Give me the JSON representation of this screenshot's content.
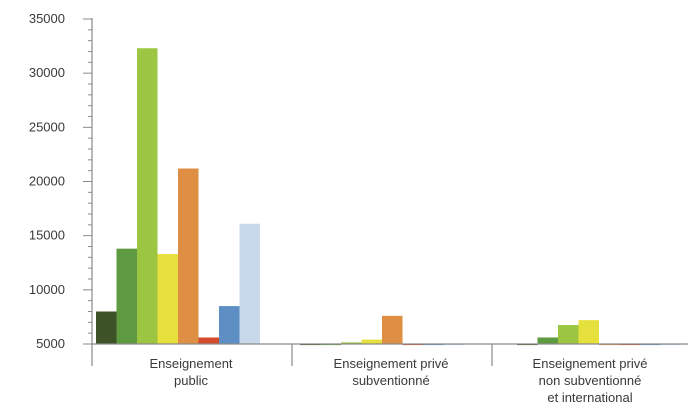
{
  "chart_data": {
    "type": "bar",
    "title": "",
    "xlabel": "",
    "ylabel": "",
    "ylim": [
      5000,
      35000
    ],
    "yticks": [
      "5000",
      "10000",
      "15000",
      "20000",
      "25000",
      "30000",
      "35000"
    ],
    "grid": false,
    "legend": "none",
    "categories": [
      [
        "Enseignement",
        "public"
      ],
      [
        "Enseignement privé",
        "subventionné"
      ],
      [
        "Enseignement privé",
        "non subventionné",
        "et international"
      ]
    ],
    "series": [
      {
        "color": "#3d5226",
        "values": [
          8000,
          4900,
          4900
        ]
      },
      {
        "color": "#5e9a3f",
        "values": [
          13800,
          4900,
          5600
        ]
      },
      {
        "color": "#9cc641",
        "values": [
          32300,
          5150,
          6750
        ]
      },
      {
        "color": "#e5e03c",
        "values": [
          13300,
          5400,
          7200
        ]
      },
      {
        "color": "#de8f43",
        "values": [
          21200,
          7600,
          4900
        ]
      },
      {
        "color": "#d44b2b",
        "values": [
          5600,
          4900,
          4900
        ]
      },
      {
        "color": "#5d8fc4",
        "values": [
          8500,
          4900,
          4900
        ]
      },
      {
        "color": "#c8d9ec",
        "values": [
          16100,
          4900,
          4900
        ]
      }
    ]
  }
}
